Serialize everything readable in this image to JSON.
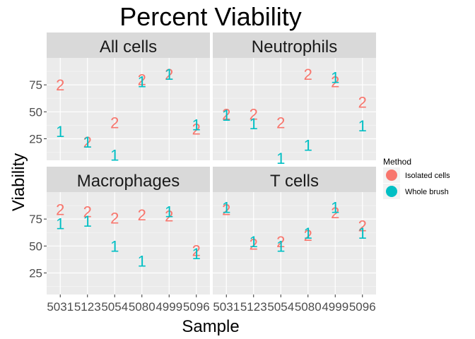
{
  "chart_data": {
    "type": "scatter",
    "title": "Percent Viability",
    "xlabel": "Sample",
    "ylabel": "Viability",
    "categories": [
      "5031",
      "5123",
      "5054",
      "5080",
      "4999",
      "5096"
    ],
    "yticks": [
      25,
      50,
      75
    ],
    "ylim": [
      5,
      100
    ],
    "grid": true,
    "legend": {
      "title": "Method",
      "position": "right",
      "entries": [
        {
          "label": "Isolated cells",
          "color": "#F8766D",
          "marker": "2"
        },
        {
          "label": "Whole brush",
          "color": "#00BFC4",
          "marker": "1"
        }
      ]
    },
    "panels": [
      {
        "label": "All cells",
        "series": [
          {
            "name": "Isolated cells",
            "marker": "2",
            "values": [
              75,
              22,
              40,
              80,
              85,
              34
            ]
          },
          {
            "name": "Whole brush",
            "marker": "1",
            "values": [
              32,
              22,
              10,
              78,
              85,
              38
            ]
          }
        ]
      },
      {
        "label": "Neutrophils",
        "series": [
          {
            "name": "Isolated cells",
            "marker": "2",
            "values": [
              48,
              48,
              40,
              85,
              78,
              59
            ]
          },
          {
            "name": "Whole brush",
            "marker": "1",
            "values": [
              47,
              39,
              7,
              19,
              82,
              37
            ]
          }
        ]
      },
      {
        "label": "Macrophages",
        "series": [
          {
            "name": "Isolated cells",
            "marker": "2",
            "values": [
              84,
              82,
              76,
              79,
              78,
              46
            ]
          },
          {
            "name": "Whole brush",
            "marker": "1",
            "values": [
              71,
              73,
              50,
              36,
              82,
              43
            ]
          }
        ]
      },
      {
        "label": "T cells",
        "series": [
          {
            "name": "Isolated cells",
            "marker": "2",
            "values": [
              84,
              52,
              54,
              60,
              81,
              69
            ]
          },
          {
            "name": "Whole brush",
            "marker": "1",
            "values": [
              86,
              54,
              50,
              62,
              86,
              62
            ]
          }
        ]
      }
    ]
  }
}
